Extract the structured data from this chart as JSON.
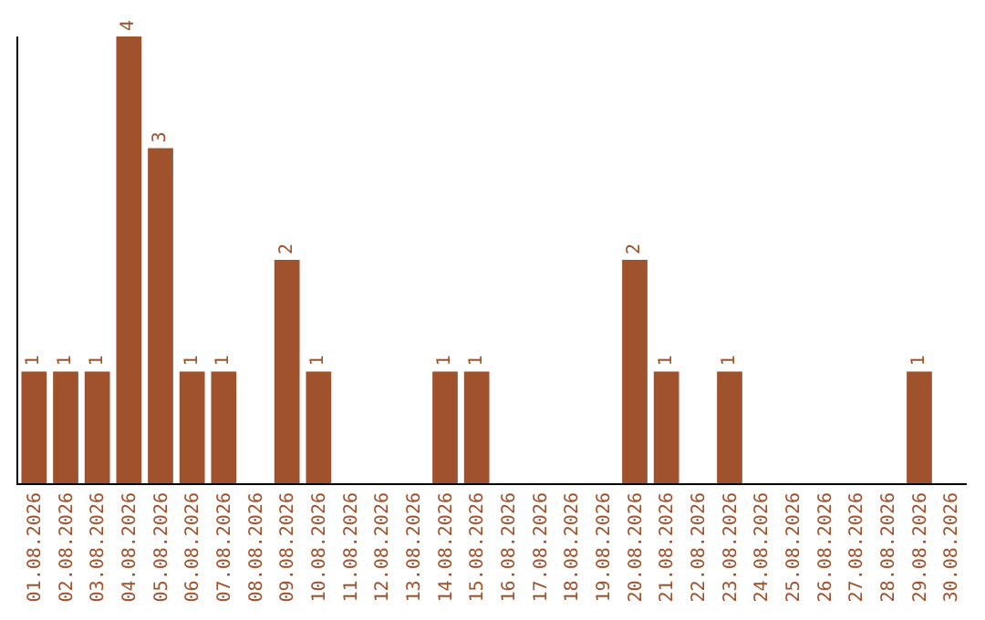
{
  "chart_data": {
    "type": "bar",
    "categories": [
      "01.08.2026",
      "02.08.2026",
      "03.08.2026",
      "04.08.2026",
      "05.08.2026",
      "06.08.2026",
      "07.08.2026",
      "08.08.2026",
      "09.08.2026",
      "10.08.2026",
      "11.08.2026",
      "12.08.2026",
      "13.08.2026",
      "14.08.2026",
      "15.08.2026",
      "16.08.2026",
      "17.08.2026",
      "18.08.2026",
      "19.08.2026",
      "20.08.2026",
      "21.08.2026",
      "22.08.2026",
      "23.08.2026",
      "24.08.2026",
      "25.08.2026",
      "26.08.2026",
      "27.08.2026",
      "28.08.2026",
      "29.08.2026",
      "30.08.2026"
    ],
    "values": [
      1,
      1,
      1,
      4,
      3,
      1,
      1,
      null,
      2,
      1,
      null,
      null,
      null,
      1,
      1,
      null,
      null,
      null,
      null,
      2,
      1,
      null,
      1,
      null,
      null,
      null,
      null,
      null,
      1,
      null
    ],
    "color": "#a0522d",
    "ylim": [
      0,
      4
    ],
    "data_labels": true,
    "tick_labels": "x"
  }
}
